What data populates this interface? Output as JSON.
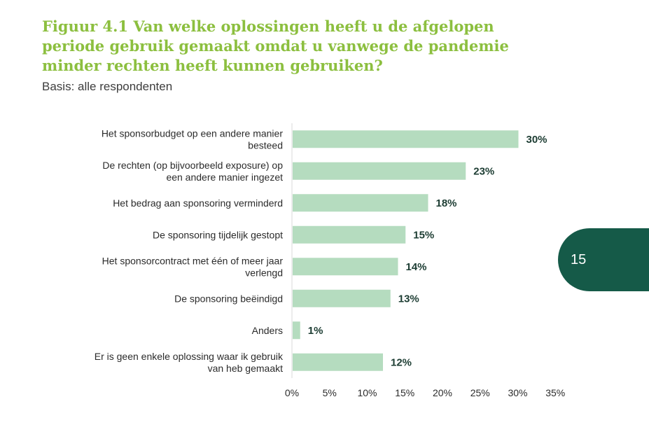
{
  "title": "Figuur 4.1 Van welke oplossingen heeft u de afgelopen periode gebruik gemaakt omdat u vanwege de pandemie minder rechten heeft kunnen gebruiken?",
  "subtitle": "Basis: alle respondenten",
  "page_number": "15",
  "colors": {
    "title": "#8cbf3f",
    "bar": "#b5dcbf",
    "value_label": "#1d3d33",
    "page_tab": "#155a48"
  },
  "chart_data": {
    "type": "bar",
    "orientation": "horizontal",
    "categories": [
      [
        "Het sponsorbudget op een andere manier",
        "besteed"
      ],
      [
        "De rechten (op bijvoorbeeld exposure) op",
        "een andere manier ingezet"
      ],
      [
        "Het bedrag aan sponsoring verminderd"
      ],
      [
        "De sponsoring tijdelijk gestopt"
      ],
      [
        "Het sponsorcontract met één of meer jaar",
        "verlengd"
      ],
      [
        "De sponsoring beëindigd"
      ],
      [
        "Anders"
      ],
      [
        "Er is geen enkele oplossing waar ik gebruik",
        "van heb gemaakt"
      ]
    ],
    "values": [
      30,
      23,
      18,
      15,
      14,
      13,
      1,
      12
    ],
    "value_labels": [
      "30%",
      "23%",
      "18%",
      "15%",
      "14%",
      "13%",
      "1%",
      "12%"
    ],
    "xlim": [
      0,
      35
    ],
    "x_ticks": [
      0,
      5,
      10,
      15,
      20,
      25,
      30,
      35
    ],
    "x_tick_labels": [
      "0%",
      "5%",
      "10%",
      "15%",
      "20%",
      "25%",
      "30%",
      "35%"
    ],
    "grid": false,
    "legend": "none"
  }
}
